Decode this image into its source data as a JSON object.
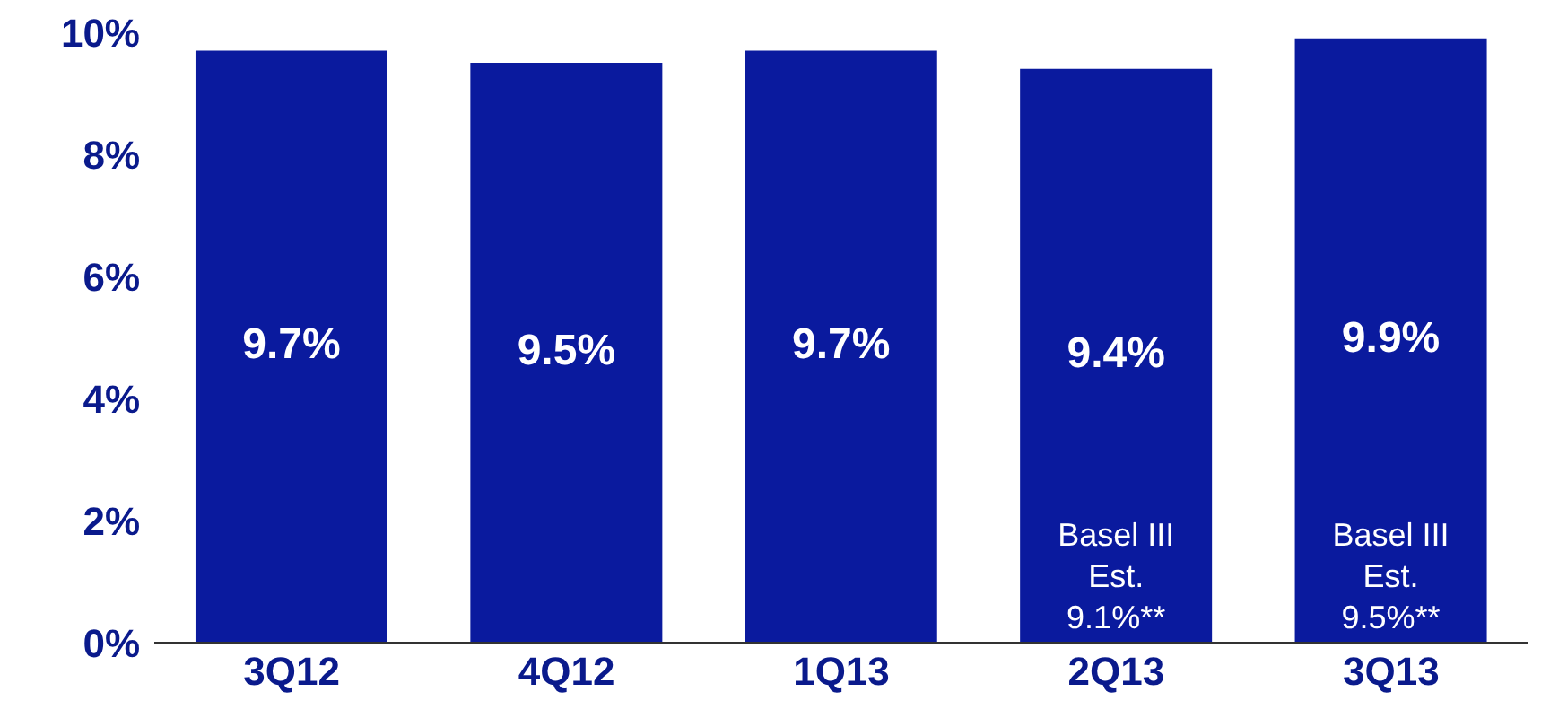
{
  "chart_data": {
    "type": "bar",
    "categories": [
      "3Q12",
      "4Q12",
      "1Q13",
      "2Q13",
      "3Q13"
    ],
    "values": [
      9.7,
      9.5,
      9.7,
      9.4,
      9.9
    ],
    "value_labels": [
      "9.7%",
      "9.5%",
      "9.7%",
      "9.4%",
      "9.9%"
    ],
    "color": "#0a1a9e",
    "ylim": [
      0,
      10
    ],
    "yticks": [
      {
        "value": 0,
        "label": "0%"
      },
      {
        "value": 2,
        "label": "2%"
      },
      {
        "value": 4,
        "label": "4%"
      },
      {
        "value": 6,
        "label": "6%"
      },
      {
        "value": 8,
        "label": "8%"
      },
      {
        "value": 10,
        "label": "10%"
      }
    ],
    "annotations": [
      "Basel III\nEst.\n9.1%**",
      "Basel III\nEst.\n9.5%**"
    ],
    "grid": false
  }
}
